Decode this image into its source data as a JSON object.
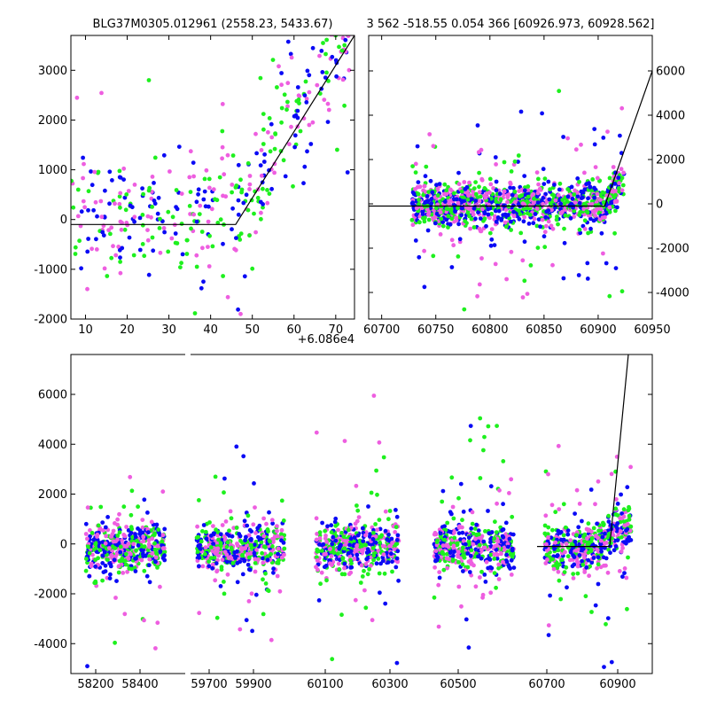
{
  "chart_data": [
    {
      "id": "top_left",
      "type": "scatter",
      "title": "BLG37M0305.012961 (2558.23, 5433.67)",
      "xlim": [
        6.5,
        74.5
      ],
      "ylim": [
        -2000,
        3700
      ],
      "x_offset_label": "+6.086e4",
      "xticks": [
        10,
        20,
        30,
        40,
        50,
        60,
        70
      ],
      "yticks": [
        -2000,
        -1000,
        0,
        1000,
        2000,
        3000
      ],
      "colors": {
        "blue": "#0a0af5",
        "green": "#1ef01e",
        "magenta": "#ee5ee0"
      },
      "model_line": [
        [
          6.5,
          -100
        ],
        [
          46,
          -100
        ],
        [
          74.5,
          3700
        ]
      ]
    },
    {
      "id": "top_right",
      "type": "scatter",
      "title": "3 562 -518.55 0.054 366 [60926.973, 60928.562]",
      "xlim": [
        60688,
        60950
      ],
      "ylim": [
        -5200,
        7600
      ],
      "xticks": [
        60700,
        60750,
        60800,
        60850,
        60900,
        60950
      ],
      "yticks": [
        -4000,
        -2000,
        0,
        2000,
        4000,
        6000
      ],
      "yaxis_side": "right",
      "model_line": [
        [
          60688,
          -100
        ],
        [
          60906,
          -100
        ],
        [
          60950,
          6000
        ]
      ]
    },
    {
      "id": "bottom",
      "type": "scatter",
      "xlim": [
        0,
        1
      ],
      "ylim": [
        -5200,
        7600
      ],
      "xticks": [
        "58200",
        "58400",
        "59700",
        "59900",
        "60100",
        "60300",
        "60500",
        "60700",
        "60900"
      ],
      "yticks": [
        -4000,
        -2000,
        0,
        2000,
        4000,
        6000
      ]
    }
  ]
}
